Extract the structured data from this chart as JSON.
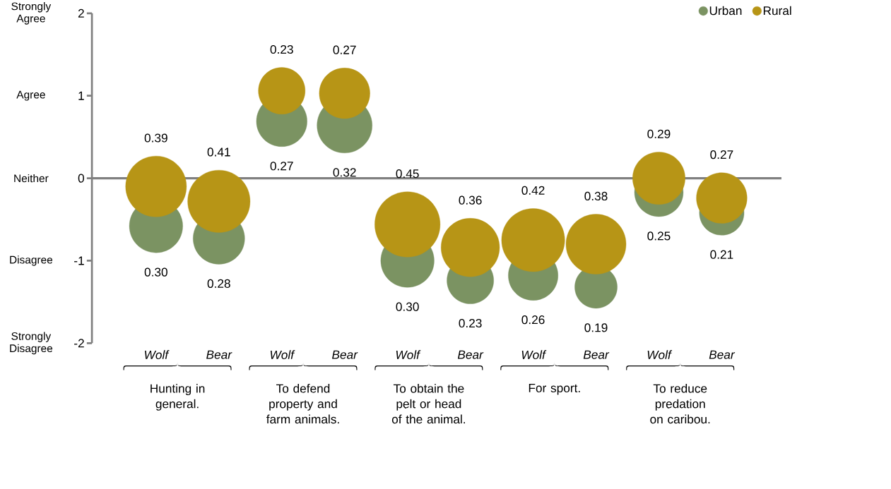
{
  "chart_data": {
    "type": "bubble",
    "categories": [
      "Wolf",
      "Bear",
      "Wolf",
      "Bear",
      "Wolf",
      "Bear",
      "Wolf",
      "Bear",
      "Wolf",
      "Bear"
    ],
    "series": [
      {
        "name": "Urban",
        "color": "#7b9362",
        "values": [
          -0.58,
          -0.73,
          0.69,
          0.64,
          -1.0,
          -1.24,
          -1.18,
          -1.32,
          -0.17,
          -0.42
        ],
        "sizes": [
          0.3,
          0.28,
          0.27,
          0.32,
          0.3,
          0.23,
          0.26,
          0.19,
          0.25,
          0.21
        ],
        "value_labels": [
          "0.30",
          "0.28",
          "0.27",
          "0.32",
          "0.30",
          "0.23",
          "0.26",
          "0.19",
          "0.25",
          "0.21"
        ]
      },
      {
        "name": "Rural",
        "color": "#b79516",
        "values": [
          -0.1,
          -0.28,
          1.06,
          1.03,
          -0.56,
          -0.84,
          -0.75,
          -0.8,
          0.0,
          -0.24
        ],
        "sizes": [
          0.39,
          0.41,
          0.23,
          0.27,
          0.45,
          0.36,
          0.42,
          0.38,
          0.29,
          0.27
        ],
        "value_labels": [
          "0.39",
          "0.41",
          "0.23",
          "0.27",
          "0.45",
          "0.36",
          "0.42",
          "0.38",
          "0.29",
          "0.27"
        ]
      }
    ],
    "ylim": [
      -2,
      2
    ],
    "yticks": [
      -2,
      -1,
      0,
      1,
      2
    ],
    "annotations": [
      "Hunting in general.",
      "To defend property and farm animals.",
      "To obtain the pelt or head of the animal.",
      "For sport.",
      "To reduce predation on caribou.",
      "Strongly Agree",
      "Agree",
      "Neither",
      "Disagree",
      "Strongly Disagree"
    ],
    "legend": "top right"
  }
}
